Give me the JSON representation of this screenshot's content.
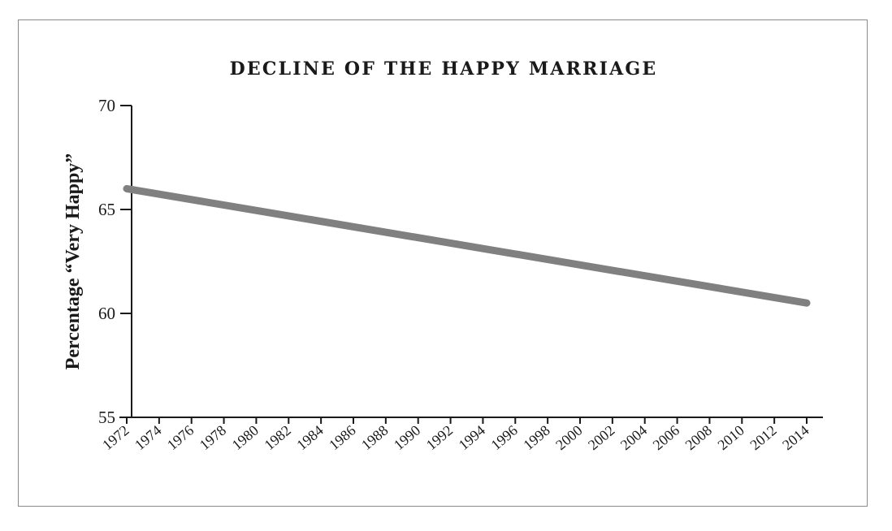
{
  "chart_data": {
    "type": "line",
    "title": "DECLINE OF THE HAPPY MARRIAGE",
    "xlabel": "",
    "ylabel": "Percentage “Very Happy”",
    "ylim": [
      55,
      70
    ],
    "yticks": [
      55,
      60,
      65,
      70
    ],
    "xlim": [
      1972,
      2014
    ],
    "xticks": [
      1972,
      1974,
      1976,
      1978,
      1980,
      1982,
      1984,
      1986,
      1988,
      1990,
      1992,
      1994,
      1996,
      1998,
      2000,
      2002,
      2004,
      2006,
      2008,
      2010,
      2012,
      2014
    ],
    "series": [
      {
        "color": "#808080",
        "x": [
          1972,
          2014
        ],
        "y": [
          66,
          60.5
        ]
      }
    ],
    "grid": false,
    "legend": "none"
  }
}
